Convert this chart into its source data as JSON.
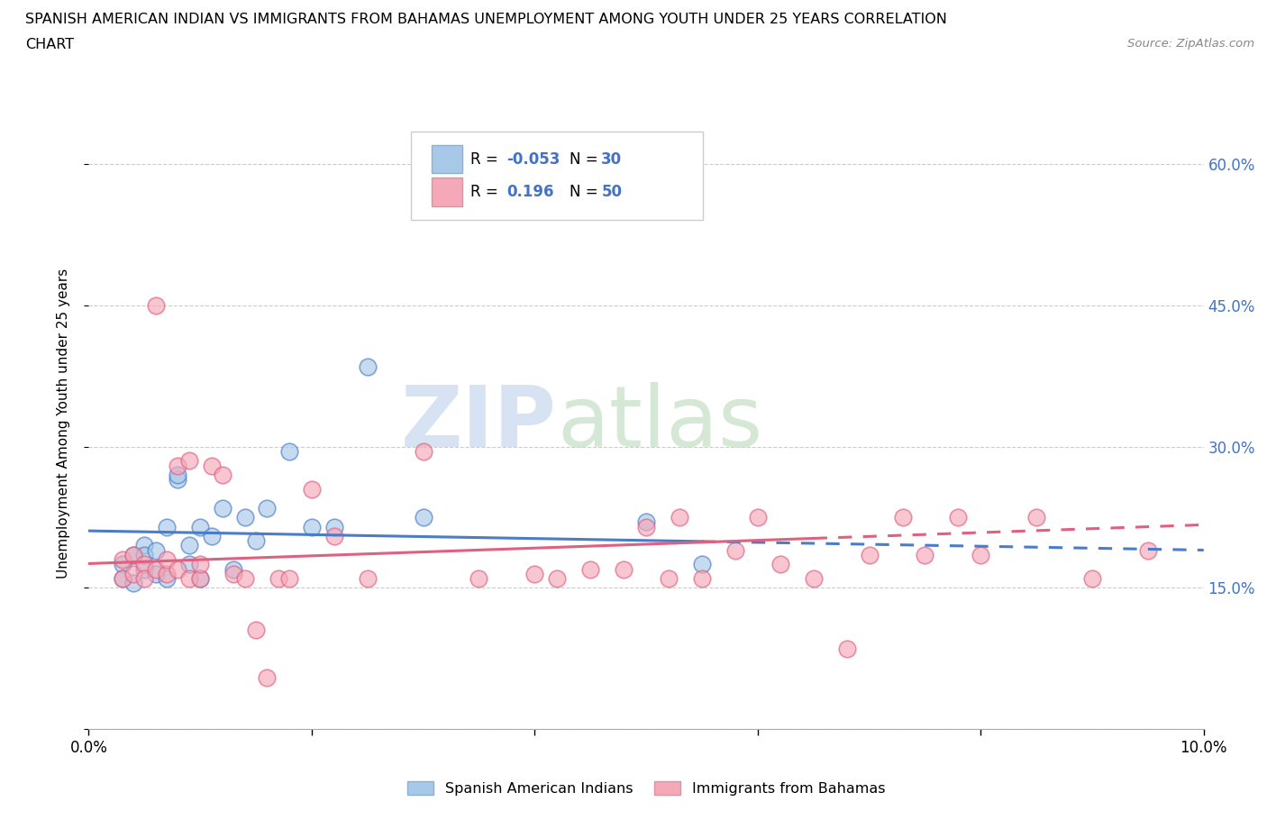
{
  "title_line1": "SPANISH AMERICAN INDIAN VS IMMIGRANTS FROM BAHAMAS UNEMPLOYMENT AMONG YOUTH UNDER 25 YEARS CORRELATION",
  "title_line2": "CHART",
  "source_text": "Source: ZipAtlas.com",
  "ylabel": "Unemployment Among Youth under 25 years",
  "xlim": [
    0.0,
    0.1
  ],
  "ylim": [
    0.0,
    0.65
  ],
  "yticks": [
    0.0,
    0.15,
    0.3,
    0.45,
    0.6
  ],
  "ytick_labels": [
    "",
    "15.0%",
    "30.0%",
    "45.0%",
    "60.0%"
  ],
  "xticks": [
    0.0,
    0.02,
    0.04,
    0.06,
    0.08,
    0.1
  ],
  "xtick_labels": [
    "0.0%",
    "",
    "",
    "",
    "",
    "10.0%"
  ],
  "blue_color": "#a8c8e8",
  "pink_color": "#f4a8b8",
  "blue_line_color": "#4a7cc7",
  "pink_line_color": "#e06080",
  "watermark_zip": "ZIP",
  "watermark_atlas": "atlas",
  "legend_label_blue": "Spanish American Indians",
  "legend_label_pink": "Immigrants from Bahamas",
  "blue_scatter_x": [
    0.003,
    0.003,
    0.004,
    0.004,
    0.005,
    0.005,
    0.005,
    0.006,
    0.006,
    0.007,
    0.007,
    0.008,
    0.008,
    0.009,
    0.009,
    0.01,
    0.01,
    0.011,
    0.012,
    0.013,
    0.014,
    0.015,
    0.016,
    0.018,
    0.02,
    0.022,
    0.025,
    0.03,
    0.05,
    0.055
  ],
  "blue_scatter_y": [
    0.175,
    0.16,
    0.185,
    0.155,
    0.195,
    0.17,
    0.185,
    0.165,
    0.19,
    0.16,
    0.215,
    0.265,
    0.27,
    0.175,
    0.195,
    0.16,
    0.215,
    0.205,
    0.235,
    0.17,
    0.225,
    0.2,
    0.235,
    0.295,
    0.215,
    0.215,
    0.385,
    0.225,
    0.22,
    0.175
  ],
  "pink_scatter_x": [
    0.003,
    0.003,
    0.004,
    0.004,
    0.005,
    0.005,
    0.006,
    0.006,
    0.007,
    0.007,
    0.008,
    0.008,
    0.009,
    0.009,
    0.01,
    0.01,
    0.011,
    0.012,
    0.013,
    0.014,
    0.015,
    0.016,
    0.017,
    0.018,
    0.02,
    0.022,
    0.025,
    0.03,
    0.035,
    0.04,
    0.042,
    0.045,
    0.048,
    0.05,
    0.052,
    0.053,
    0.055,
    0.058,
    0.06,
    0.062,
    0.065,
    0.068,
    0.07,
    0.073,
    0.075,
    0.078,
    0.08,
    0.085,
    0.09,
    0.095
  ],
  "pink_scatter_y": [
    0.18,
    0.16,
    0.185,
    0.165,
    0.175,
    0.16,
    0.45,
    0.17,
    0.165,
    0.18,
    0.28,
    0.17,
    0.16,
    0.285,
    0.16,
    0.175,
    0.28,
    0.27,
    0.165,
    0.16,
    0.105,
    0.055,
    0.16,
    0.16,
    0.255,
    0.205,
    0.16,
    0.295,
    0.16,
    0.165,
    0.16,
    0.17,
    0.17,
    0.215,
    0.16,
    0.225,
    0.16,
    0.19,
    0.225,
    0.175,
    0.16,
    0.085,
    0.185,
    0.225,
    0.185,
    0.225,
    0.185,
    0.225,
    0.16,
    0.19
  ],
  "blue_line_x0": 0.0,
  "blue_line_x1": 0.055,
  "blue_line_xd0": 0.055,
  "blue_line_xd1": 0.1,
  "pink_line_x0": 0.0,
  "pink_line_x1": 0.065,
  "pink_line_xd0": 0.065,
  "pink_line_xd1": 0.1
}
